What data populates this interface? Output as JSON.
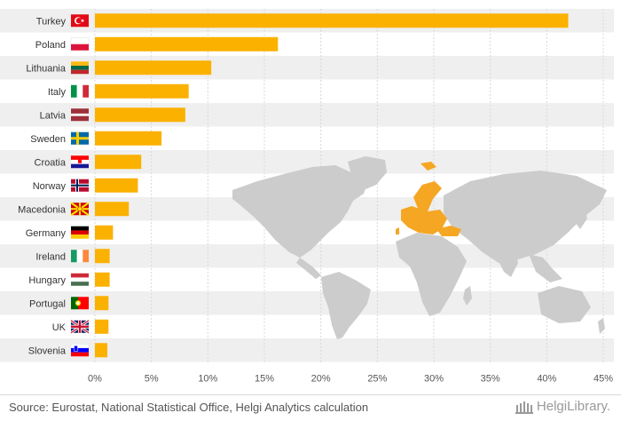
{
  "chart_data": {
    "type": "bar",
    "orientation": "horizontal",
    "categories": [
      "Turkey",
      "Poland",
      "Lithuania",
      "Italy",
      "Latvia",
      "Sweden",
      "Croatia",
      "Norway",
      "Macedonia",
      "Germany",
      "Ireland",
      "Hungary",
      "Portugal",
      "UK",
      "Slovenia"
    ],
    "values": [
      41.9,
      16.2,
      10.3,
      8.3,
      8.0,
      5.9,
      4.1,
      3.8,
      3.0,
      1.6,
      1.3,
      1.3,
      1.2,
      1.2,
      1.1
    ],
    "xlim": [
      0,
      45
    ],
    "xticks": [
      "0%",
      "5%",
      "10%",
      "15%",
      "20%",
      "25%",
      "30%",
      "35%",
      "40%",
      "45%"
    ],
    "bar_color": "#fbb100",
    "stripe_color": "#efefef",
    "grid": true
  },
  "flag_icons": [
    "turkey-flag-icon",
    "poland-flag-icon",
    "lithuania-flag-icon",
    "italy-flag-icon",
    "latvia-flag-icon",
    "sweden-flag-icon",
    "croatia-flag-icon",
    "norway-flag-icon",
    "macedonia-flag-icon",
    "germany-flag-icon",
    "ireland-flag-icon",
    "hungary-flag-icon",
    "portugal-flag-icon",
    "uk-flag-icon",
    "slovenia-flag-icon"
  ],
  "map": {
    "land_color": "#cccccc",
    "highlight_color": "#f5a623"
  },
  "footer": {
    "source": "Source: Eurostat, National Statistical Office, Helgi Analytics calculation",
    "brand": "HelgiLibrary."
  }
}
